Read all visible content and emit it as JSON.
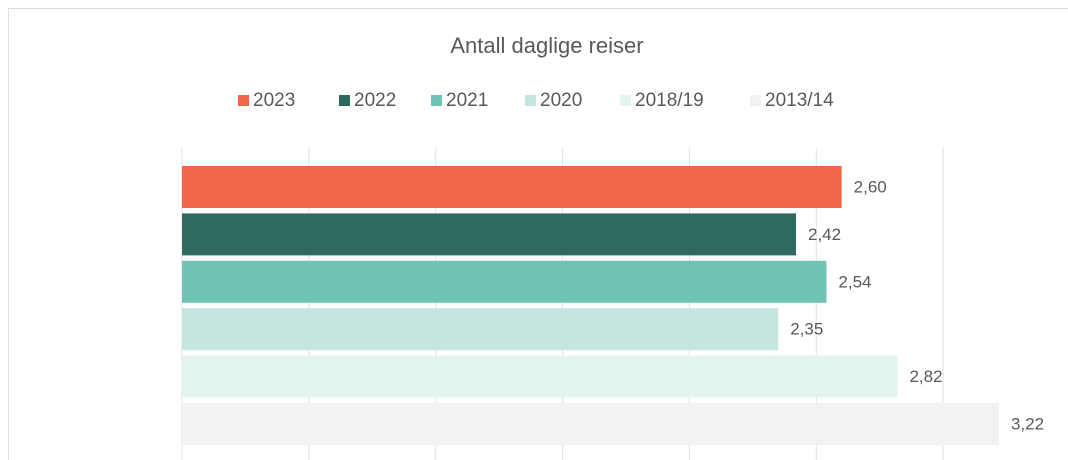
{
  "chart_data": {
    "type": "bar",
    "orientation": "horizontal",
    "title": "Antall daglige reiser",
    "series": [
      {
        "name": "2023",
        "color": "#f26649",
        "values": [
          2.6
        ],
        "value_labels": [
          "2,60"
        ]
      },
      {
        "name": "2022",
        "color": "#2e6b5f",
        "values": [
          2.42
        ],
        "value_labels": [
          "2,42"
        ]
      },
      {
        "name": "2021",
        "color": "#70c4b4",
        "values": [
          2.54
        ],
        "value_labels": [
          "2,54"
        ]
      },
      {
        "name": "2020",
        "color": "#c5e6e0",
        "values": [
          2.35
        ],
        "value_labels": [
          "2,35"
        ]
      },
      {
        "name": "2018/19",
        "color": "#e2f3f0",
        "values": [
          2.82
        ],
        "value_labels": [
          "2,82"
        ]
      },
      {
        "name": "2013/14",
        "color": "#f2f2f2",
        "values": [
          3.22
        ],
        "value_labels": [
          "3,22"
        ]
      }
    ],
    "xlim": [
      0,
      3.5
    ],
    "xticks": [
      0,
      0.5,
      1,
      1.5,
      2,
      2.5,
      3
    ],
    "grid": true,
    "legend": "top"
  }
}
